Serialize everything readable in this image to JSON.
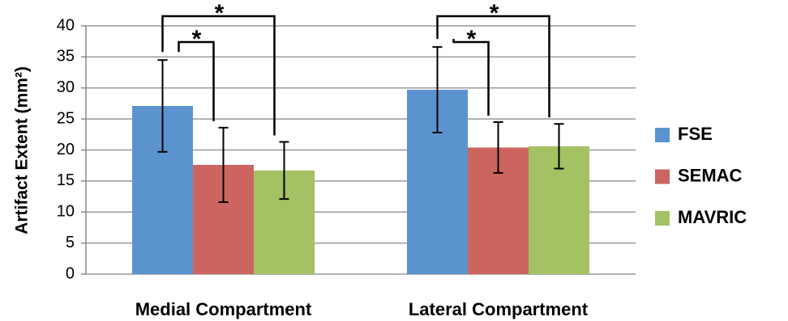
{
  "chart_data": {
    "type": "bar",
    "y_label": "Artifact Extent (mm²)",
    "categories": [
      "Medial Compartment",
      "Lateral Compartment"
    ],
    "series": [
      {
        "name": "FSE",
        "color": "#5b93cf",
        "values": [
          27.1,
          29.7
        ],
        "errors": [
          7.4,
          6.9
        ]
      },
      {
        "name": "SEMAC",
        "color": "#cc6560",
        "values": [
          17.6,
          20.4
        ],
        "errors": [
          6.0,
          4.1
        ]
      },
      {
        "name": "MAVRIC",
        "color": "#a4c163",
        "values": [
          16.7,
          20.6
        ],
        "errors": [
          4.6,
          3.6
        ]
      }
    ],
    "significance": [
      {
        "category": 0,
        "series": [
          0,
          2
        ],
        "label": "*"
      },
      {
        "category": 0,
        "series": [
          0,
          1
        ],
        "label": "*"
      },
      {
        "category": 1,
        "series": [
          0,
          2
        ],
        "label": "*"
      },
      {
        "category": 1,
        "series": [
          0,
          1
        ],
        "label": "*"
      }
    ],
    "ylim": [
      0,
      40
    ],
    "yticks": [
      0,
      5,
      10,
      15,
      20,
      25,
      30,
      35,
      40
    ],
    "grid": true,
    "legend": "right"
  }
}
